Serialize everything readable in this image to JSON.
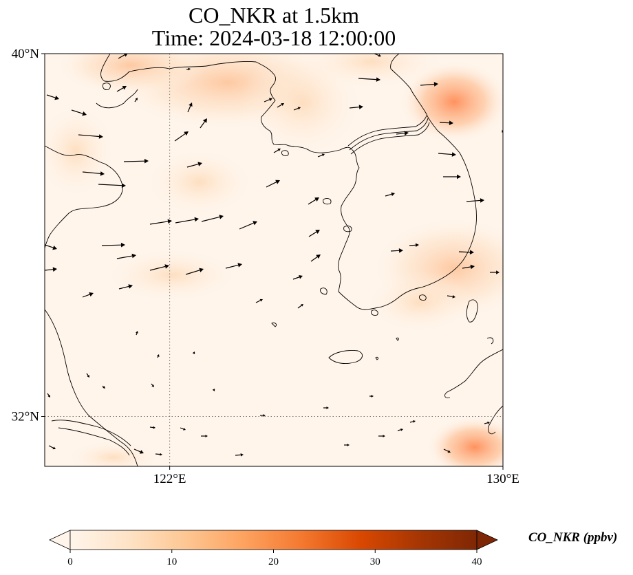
{
  "title": {
    "line1": "CO_NKR at 1.5km",
    "line2": "Time: 2024-03-18 12:00:00"
  },
  "map": {
    "lon_range": [
      119,
      130
    ],
    "lat_range": [
      30.9,
      40
    ],
    "gridlines": {
      "lons": [
        122
      ],
      "lats": [
        32
      ],
      "style": "dotted"
    },
    "ticks": {
      "lat": [
        {
          "value": 40,
          "label": "40°N"
        },
        {
          "value": 32,
          "label": "32°N"
        }
      ],
      "lon": [
        {
          "value": 122,
          "label": "122°E"
        },
        {
          "value": 130,
          "label": "130°E"
        }
      ]
    },
    "field_color_low": "#fff5eb",
    "field_color_high": "#ff8c57",
    "coastline_color": "#000000"
  },
  "colorbar": {
    "label": "CO_NKR (ppbv)",
    "min": 0,
    "max": 40,
    "ticks": [
      "0",
      "10",
      "20",
      "30",
      "40"
    ],
    "extend": "both",
    "colormap": [
      "#fff5eb",
      "#fee3c6",
      "#fdc692",
      "#fda25f",
      "#f4782f",
      "#d94801",
      "#a63603",
      "#7f2704"
    ]
  }
}
